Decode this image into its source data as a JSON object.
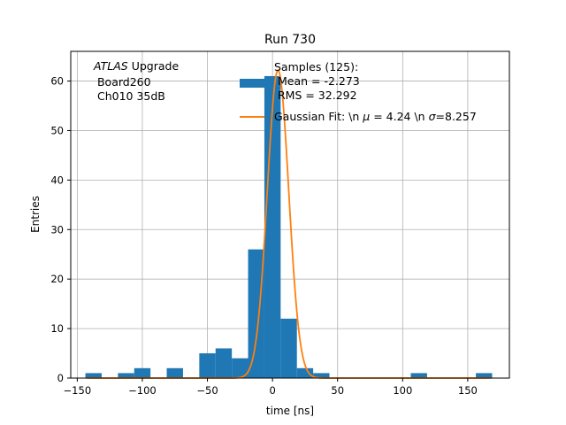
{
  "chart_data": {
    "type": "bar",
    "title": "Run 730",
    "xlabel": "time [ns]",
    "ylabel": "Entries",
    "xlim": [
      -155,
      182
    ],
    "ylim": [
      0,
      66
    ],
    "grid": true,
    "x_ticks": [
      -150,
      -100,
      -50,
      0,
      50,
      100,
      150
    ],
    "x_tick_labels": [
      "−150",
      "−100",
      "−50",
      "0",
      "50",
      "100",
      "150"
    ],
    "y_ticks": [
      0,
      10,
      20,
      30,
      40,
      50,
      60
    ],
    "y_tick_labels": [
      "0",
      "10",
      "20",
      "30",
      "40",
      "50",
      "60"
    ],
    "annotation": {
      "line1_italic": "ATLAS",
      "line1_rest": " Upgrade",
      "line2": " Board260",
      "line3": " Ch010 35dB"
    },
    "legend": {
      "position": "top-right",
      "histogram_label_lines": [
        "Samples (125):",
        "Mean = -2.273",
        "RMS = 32.292"
      ],
      "fit_label_prefix": "Gaussian Fit: \\n ",
      "fit_label_mu": "μ",
      "fit_label_mid": " = 4.24 \\n ",
      "fit_label_sigma": "σ",
      "fit_label_suffix": "=8.257"
    },
    "histogram": {
      "name": "Samples (125):",
      "color": "#1f77b4",
      "bin_width": 12.5,
      "bins": [
        {
          "x_start": -143.75,
          "count": 1
        },
        {
          "x_start": -118.75,
          "count": 1
        },
        {
          "x_start": -106.25,
          "count": 2
        },
        {
          "x_start": -81.25,
          "count": 2
        },
        {
          "x_start": -56.25,
          "count": 5
        },
        {
          "x_start": -43.75,
          "count": 6
        },
        {
          "x_start": -31.25,
          "count": 4
        },
        {
          "x_start": -18.75,
          "count": 26
        },
        {
          "x_start": -6.25,
          "count": 61
        },
        {
          "x_start": 6.25,
          "count": 12
        },
        {
          "x_start": 18.75,
          "count": 2
        },
        {
          "x_start": 31.25,
          "count": 1
        },
        {
          "x_start": 106.25,
          "count": 1
        },
        {
          "x_start": 156.25,
          "count": 1
        }
      ]
    },
    "fit": {
      "name": "Gaussian Fit",
      "color": "#ff7f0e",
      "mu": 4.24,
      "sigma": 8.257,
      "amplitude": 62.2,
      "x_range": [
        -143,
        168
      ]
    }
  }
}
